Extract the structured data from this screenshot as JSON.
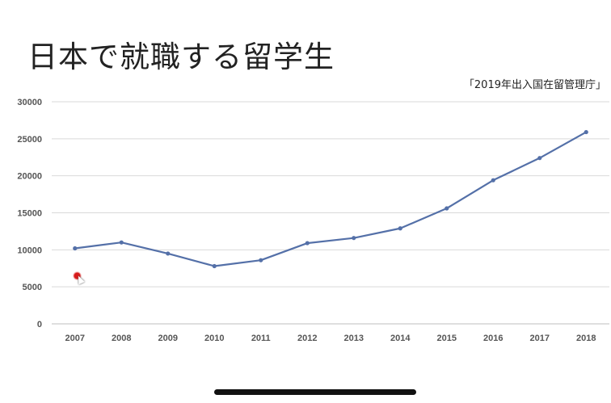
{
  "title": "日本で就職する留学生",
  "source_note": "「2019年出入国在留管理庁」",
  "colors": {
    "line": "#5470a8",
    "grid": "#d9d9d9",
    "axis": "#bfbfbf"
  },
  "chart_data": {
    "type": "line",
    "categories": [
      "2007",
      "2008",
      "2009",
      "2010",
      "2011",
      "2012",
      "2013",
      "2014",
      "2015",
      "2016",
      "2017",
      "2018"
    ],
    "series": [
      {
        "values": [
          10200,
          11000,
          9500,
          7800,
          8600,
          10900,
          11600,
          12900,
          15600,
          19400,
          22400,
          25900
        ]
      }
    ],
    "ylim": [
      0,
      30000
    ],
    "yticks": [
      "0",
      "5000",
      "10000",
      "15000",
      "20000",
      "25000",
      "30000"
    ],
    "grid": true,
    "legend": "none"
  }
}
